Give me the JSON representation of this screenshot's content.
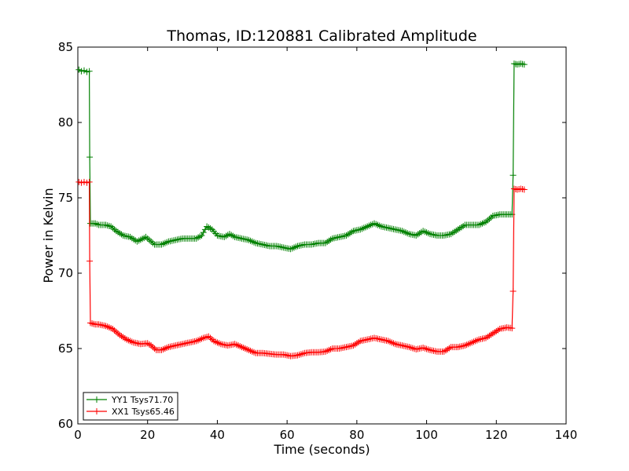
{
  "chart_data": {
    "type": "line",
    "title": "Thomas, ID:120881 Calibrated Amplitude",
    "xlabel": "Time (seconds)",
    "ylabel": "Power in Kelvin",
    "xlim": [
      0,
      140
    ],
    "ylim": [
      60,
      85
    ],
    "xticks": [
      0,
      20,
      40,
      60,
      80,
      100,
      120,
      140
    ],
    "yticks": [
      60,
      65,
      70,
      75,
      80,
      85
    ],
    "grid": false,
    "legend_position": "lower-left",
    "marker": "+",
    "series": [
      {
        "name": "YY1 Tsys71.70",
        "color": "#008000",
        "points": [
          [
            0.3,
            83.5
          ],
          [
            1.0,
            83.4
          ],
          [
            1.8,
            83.45
          ],
          [
            2.6,
            83.35
          ],
          [
            3.3,
            83.4
          ],
          [
            3.4,
            77.7
          ],
          [
            3.6,
            73.3
          ],
          [
            5,
            73.3
          ],
          [
            6,
            73.2
          ],
          [
            8,
            73.2
          ],
          [
            9.5,
            73.1
          ],
          [
            11,
            72.8
          ],
          [
            13,
            72.5
          ],
          [
            15,
            72.4
          ],
          [
            17,
            72.1
          ],
          [
            19.5,
            72.4
          ],
          [
            20.5,
            72.2
          ],
          [
            22,
            71.9
          ],
          [
            24,
            71.9
          ],
          [
            26,
            72.1
          ],
          [
            28,
            72.2
          ],
          [
            30,
            72.3
          ],
          [
            32,
            72.3
          ],
          [
            34,
            72.3
          ],
          [
            35.5,
            72.5
          ],
          [
            37,
            73.1
          ],
          [
            38.5,
            72.9
          ],
          [
            40,
            72.5
          ],
          [
            42,
            72.4
          ],
          [
            43.5,
            72.6
          ],
          [
            45,
            72.4
          ],
          [
            47,
            72.3
          ],
          [
            49,
            72.2
          ],
          [
            51,
            72.0
          ],
          [
            53,
            71.9
          ],
          [
            55,
            71.8
          ],
          [
            57,
            71.8
          ],
          [
            59,
            71.7
          ],
          [
            61,
            71.6
          ],
          [
            63,
            71.8
          ],
          [
            65,
            71.9
          ],
          [
            67,
            71.9
          ],
          [
            69,
            72.0
          ],
          [
            71,
            72.0
          ],
          [
            73,
            72.3
          ],
          [
            75,
            72.4
          ],
          [
            77,
            72.5
          ],
          [
            79,
            72.8
          ],
          [
            81,
            72.9
          ],
          [
            83,
            73.1
          ],
          [
            85,
            73.3
          ],
          [
            87,
            73.1
          ],
          [
            89,
            73.0
          ],
          [
            91,
            72.9
          ],
          [
            93,
            72.8
          ],
          [
            95,
            72.6
          ],
          [
            97,
            72.5
          ],
          [
            99,
            72.8
          ],
          [
            101,
            72.6
          ],
          [
            103,
            72.5
          ],
          [
            105,
            72.5
          ],
          [
            107,
            72.6
          ],
          [
            109,
            72.9
          ],
          [
            111,
            73.2
          ],
          [
            113,
            73.2
          ],
          [
            115,
            73.2
          ],
          [
            117,
            73.4
          ],
          [
            119,
            73.8
          ],
          [
            121,
            73.9
          ],
          [
            123,
            73.9
          ],
          [
            124.5,
            73.9
          ],
          [
            124.8,
            76.5
          ],
          [
            125.1,
            83.9
          ],
          [
            126,
            83.85
          ],
          [
            127,
            83.9
          ],
          [
            128,
            83.85
          ]
        ]
      },
      {
        "name": "XX1 Tsys65.46",
        "color": "#ff0000",
        "points": [
          [
            0.3,
            76.05
          ],
          [
            1.0,
            76.0
          ],
          [
            1.8,
            76.05
          ],
          [
            2.6,
            76.0
          ],
          [
            3.3,
            76.05
          ],
          [
            3.4,
            70.8
          ],
          [
            3.6,
            66.7
          ],
          [
            5,
            66.6
          ],
          [
            6,
            66.6
          ],
          [
            8,
            66.5
          ],
          [
            10,
            66.3
          ],
          [
            12,
            65.9
          ],
          [
            14,
            65.6
          ],
          [
            16,
            65.4
          ],
          [
            18,
            65.3
          ],
          [
            20,
            65.35
          ],
          [
            21,
            65.2
          ],
          [
            22.5,
            64.9
          ],
          [
            24,
            64.9
          ],
          [
            26,
            65.1
          ],
          [
            28,
            65.2
          ],
          [
            30,
            65.3
          ],
          [
            32,
            65.4
          ],
          [
            34,
            65.5
          ],
          [
            36,
            65.7
          ],
          [
            37.5,
            65.8
          ],
          [
            39,
            65.5
          ],
          [
            41,
            65.3
          ],
          [
            43,
            65.2
          ],
          [
            45,
            65.3
          ],
          [
            47,
            65.1
          ],
          [
            49,
            64.9
          ],
          [
            51,
            64.7
          ],
          [
            53,
            64.7
          ],
          [
            55,
            64.65
          ],
          [
            57,
            64.6
          ],
          [
            59,
            64.6
          ],
          [
            61,
            64.5
          ],
          [
            63,
            64.55
          ],
          [
            65,
            64.7
          ],
          [
            67,
            64.75
          ],
          [
            69,
            64.75
          ],
          [
            71,
            64.8
          ],
          [
            73,
            65.0
          ],
          [
            75,
            65.0
          ],
          [
            77,
            65.1
          ],
          [
            79,
            65.2
          ],
          [
            81,
            65.5
          ],
          [
            83,
            65.6
          ],
          [
            85,
            65.7
          ],
          [
            87,
            65.6
          ],
          [
            89,
            65.5
          ],
          [
            91,
            65.3
          ],
          [
            93,
            65.2
          ],
          [
            95,
            65.1
          ],
          [
            97,
            64.95
          ],
          [
            99,
            65.05
          ],
          [
            101,
            64.9
          ],
          [
            103,
            64.8
          ],
          [
            105,
            64.8
          ],
          [
            107,
            65.1
          ],
          [
            109,
            65.1
          ],
          [
            111,
            65.2
          ],
          [
            113,
            65.4
          ],
          [
            115,
            65.6
          ],
          [
            117,
            65.7
          ],
          [
            119,
            66.0
          ],
          [
            121,
            66.3
          ],
          [
            123,
            66.4
          ],
          [
            124.5,
            66.35
          ],
          [
            124.8,
            68.8
          ],
          [
            125.1,
            75.6
          ],
          [
            126,
            75.55
          ],
          [
            127,
            75.6
          ],
          [
            128,
            75.55
          ]
        ]
      }
    ]
  }
}
